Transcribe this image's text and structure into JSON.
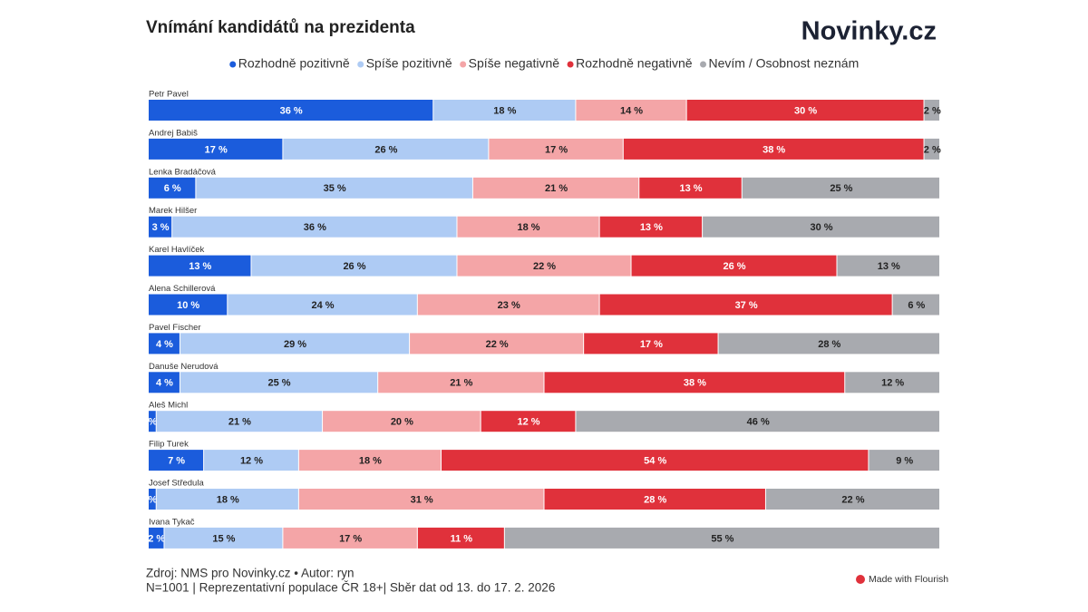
{
  "chart_data": {
    "type": "stacked-bar-horizontal",
    "title": "Vnímání kandidátů na prezidenta",
    "brand": "Novinky.cz",
    "source": "Zdroj: NMS pro Novinky.cz • Autor: ryn",
    "note": "N=1001 | Reprezentativní populace ČR 18+| Sběr dat od 13. do 17. 2. 2026",
    "credit": "Made with Flourish",
    "xlim": [
      0,
      100
    ],
    "categories": [
      "Petr Pavel",
      "Andrej Babiš",
      "Lenka Bradáčová",
      "Marek Hilšer",
      "Karel Havlíček",
      "Alena Schillerová",
      "Pavel Fischer",
      "Danuše Nerudová",
      "Aleš Michl",
      "Filip Turek",
      "Josef Středula",
      "Ivana Tykač"
    ],
    "series": [
      {
        "name": "Rozhodně pozitivně",
        "color": "#1b5cdc",
        "values": [
          36,
          17,
          6,
          3,
          13,
          10,
          4,
          4,
          1,
          7,
          1,
          2
        ],
        "value_labels": [
          "36 %",
          "17 %",
          "6 %",
          "3 %",
          "13 %",
          "10 %",
          "4 %",
          "4 %",
          "%",
          "7 %",
          "%",
          "2 %"
        ]
      },
      {
        "name": "Spíše pozitivně",
        "color": "#aecbf4",
        "values": [
          18,
          26,
          35,
          36,
          26,
          24,
          29,
          25,
          21,
          12,
          18,
          15
        ],
        "value_labels": [
          "18 %",
          "26 %",
          "35 %",
          "36 %",
          "26 %",
          "24 %",
          "29 %",
          "25 %",
          "21 %",
          "12 %",
          "18 %",
          "15 %"
        ]
      },
      {
        "name": "Spíše negativně",
        "color": "#f4a5a7",
        "values": [
          14,
          17,
          21,
          18,
          22,
          23,
          22,
          21,
          20,
          18,
          31,
          17
        ],
        "value_labels": [
          "14 %",
          "17 %",
          "21 %",
          "18 %",
          "22 %",
          "23 %",
          "22 %",
          "21 %",
          "20 %",
          "18 %",
          "31 %",
          "17 %"
        ]
      },
      {
        "name": "Rozhodně negativně",
        "color": "#e0313b",
        "values": [
          30,
          38,
          13,
          13,
          26,
          37,
          17,
          38,
          12,
          54,
          28,
          11
        ],
        "value_labels": [
          "30 %",
          "38 %",
          "13 %",
          "13 %",
          "26 %",
          "37 %",
          "17 %",
          "38 %",
          "12 %",
          "54 %",
          "28 %",
          "11 %"
        ]
      },
      {
        "name": "Nevím / Osobnost neznám",
        "color": "#a8aaaf",
        "values": [
          2,
          2,
          25,
          30,
          13,
          6,
          28,
          12,
          46,
          9,
          22,
          55
        ],
        "value_labels": [
          "2 %",
          "2 %",
          "25 %",
          "30 %",
          "13 %",
          "6 %",
          "28 %",
          "12 %",
          "46 %",
          "9 %",
          "22 %",
          "55 %"
        ]
      }
    ]
  }
}
